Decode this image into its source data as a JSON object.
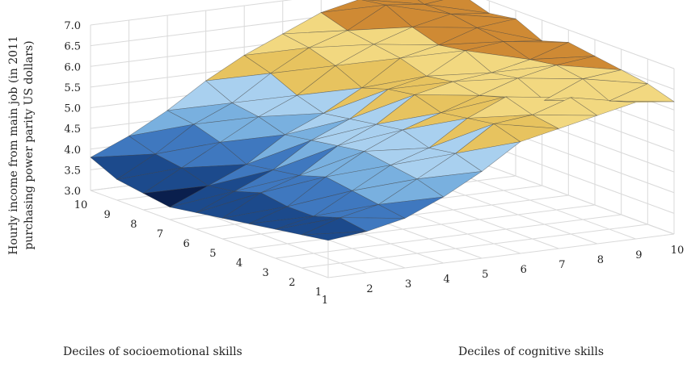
{
  "chart_data": {
    "type": "surface",
    "title": "",
    "x_axis": {
      "label": "Deciles of cognitive skills",
      "ticks": [
        "1",
        "2",
        "3",
        "4",
        "5",
        "6",
        "7",
        "8",
        "9",
        "10"
      ]
    },
    "y_axis": {
      "label": "Deciles of socioemotional skills",
      "ticks": [
        "1",
        "2",
        "3",
        "4",
        "5",
        "6",
        "7",
        "8",
        "9",
        "10"
      ]
    },
    "z_axis": {
      "label_lines": [
        "Hourly income from main job (in 2011",
        "purchasing power parity US dollars)"
      ],
      "ticks": [
        "3.0",
        "3.5",
        "4.0",
        "4.5",
        "5.0",
        "5.5",
        "6.0",
        "6.5",
        "7.0"
      ],
      "range": [
        3.0,
        7.0
      ]
    },
    "color_bands": [
      {
        "from": 3.0,
        "to": 3.5,
        "color": "#0a1f4d"
      },
      {
        "from": 3.5,
        "to": 4.0,
        "color": "#1c4a8c"
      },
      {
        "from": 4.0,
        "to": 4.5,
        "color": "#3f78bf"
      },
      {
        "from": 4.5,
        "to": 5.0,
        "color": "#79b0df"
      },
      {
        "from": 5.0,
        "to": 5.5,
        "color": "#a9d0ef"
      },
      {
        "from": 5.5,
        "to": 6.0,
        "color": "#e7c35f"
      },
      {
        "from": 6.0,
        "to": 6.5,
        "color": "#f2d880"
      },
      {
        "from": 6.5,
        "to": 7.0,
        "color": "#cf8a34"
      }
    ],
    "z_values_note": "rows = socioemotional decile 1..10, columns = cognitive decile 1..10",
    "z_values": [
      [
        3.9,
        4.0,
        4.2,
        4.6,
        5.1,
        5.7,
        5.9,
        6.1,
        6.3,
        6.2
      ],
      [
        3.8,
        4.1,
        4.3,
        4.8,
        5.3,
        5.9,
        6.0,
        6.3,
        6.1,
        6.4
      ],
      [
        3.7,
        3.9,
        4.4,
        4.9,
        5.2,
        5.8,
        6.2,
        6.0,
        6.4,
        6.5
      ],
      [
        3.6,
        3.9,
        4.5,
        5.0,
        5.4,
        5.7,
        6.0,
        6.3,
        6.5,
        6.6
      ],
      [
        3.5,
        4.0,
        4.3,
        4.9,
        5.3,
        5.9,
        6.1,
        6.2,
        6.4,
        6.7
      ],
      [
        3.4,
        3.8,
        4.2,
        4.8,
        5.2,
        5.8,
        6.0,
        6.5,
        6.6,
        6.5
      ],
      [
        3.3,
        3.7,
        4.1,
        4.7,
        5.1,
        5.6,
        6.2,
        6.4,
        6.7,
        6.8
      ],
      [
        3.4,
        3.9,
        4.4,
        4.9,
        5.3,
        5.9,
        6.3,
        6.6,
        6.8,
        6.7
      ],
      [
        3.5,
        4.0,
        4.6,
        5.0,
        5.6,
        6.1,
        6.4,
        6.9,
        6.8,
        6.9
      ],
      [
        3.8,
        4.2,
        4.7,
        5.3,
        5.8,
        6.2,
        6.6,
        6.8,
        7.0,
        6.9
      ]
    ]
  }
}
